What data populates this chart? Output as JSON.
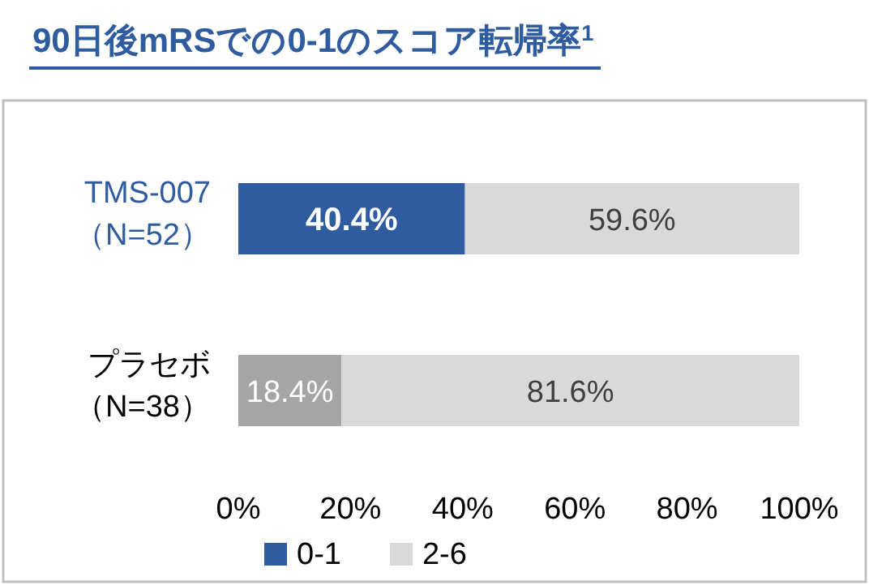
{
  "chart_data": {
    "type": "bar",
    "orientation": "horizontal",
    "stacked": true,
    "title": "90日後mRSでの0-1のスコア転帰率$^{1}$",
    "categories": [
      "TMS-007（N=52）",
      "プラセボ（N=38）"
    ],
    "series": [
      {
        "name": "0-1",
        "color": "#2e5c9e",
        "colors": [
          "#2e5c9e",
          "#a5a5a5"
        ],
        "values": [
          40.4,
          18.4
        ],
        "value_labels": [
          "40.4%",
          "18.4%"
        ]
      },
      {
        "name": "2-6",
        "color": "#d9d9d9",
        "values": [
          59.6,
          81.6
        ],
        "value_labels": [
          "59.6%",
          "81.6%"
        ]
      }
    ],
    "xlim": [
      0,
      100
    ],
    "xticks": [
      {
        "value": 0,
        "label": "0%"
      },
      {
        "value": 20,
        "label": "20%"
      },
      {
        "value": 40,
        "label": "40%"
      },
      {
        "value": 60,
        "label": "60%"
      },
      {
        "value": 80,
        "label": "80%"
      },
      {
        "value": 100,
        "label": "100%"
      }
    ],
    "grid": false,
    "legend": "bottom"
  }
}
